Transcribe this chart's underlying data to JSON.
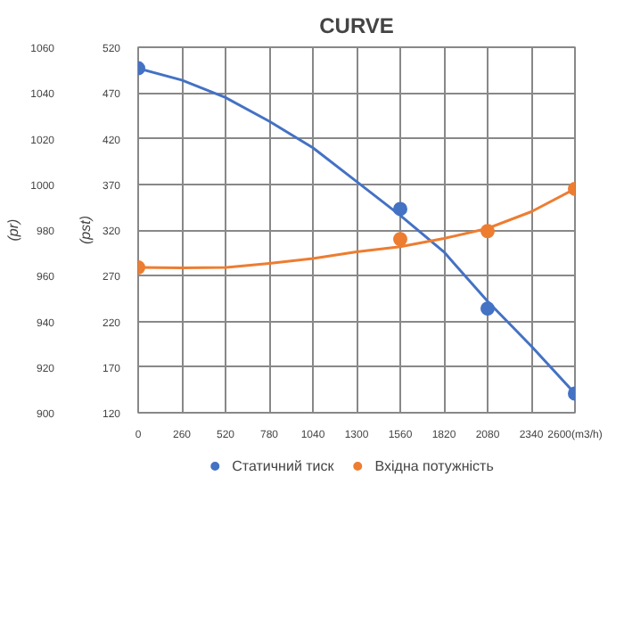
{
  "chart_data": {
    "type": "scatter",
    "title": "CURVE",
    "ylabel": "(pst)",
    "y2label": "(pr)",
    "x": [
      0,
      1560,
      2080,
      2600
    ],
    "series": [
      {
        "name": "Статичний тиск",
        "color": "#4472c4",
        "values": [
          497,
          343,
          234,
          141
        ]
      },
      {
        "name": "Вхідна потужність",
        "color": "#ed7d31",
        "axis": "y2",
        "values": [
          963.6,
          976,
          979.5,
          998
        ]
      },
      {
        "type": "line",
        "marker": "none",
        "color": "#4472c4",
        "x": [
          0,
          260,
          520,
          780,
          1040,
          1300,
          1560,
          1820,
          2080,
          2340,
          2600
        ],
        "values": [
          497,
          484,
          465,
          439,
          410,
          373,
          336,
          296,
          242,
          193,
          141
        ]
      },
      {
        "type": "line",
        "marker": "none",
        "color": "#ed7d31",
        "axis": "y2",
        "x": [
          0,
          260,
          520,
          780,
          1040,
          1300,
          1560,
          1820,
          2080,
          2340,
          2600
        ],
        "values": [
          963.6,
          963.4,
          963.6,
          965.4,
          967.5,
          970.4,
          972.7,
          976.3,
          980.7,
          988,
          998
        ]
      }
    ],
    "xlim": [
      0,
      2600
    ],
    "xticks": [
      0,
      260,
      520,
      780,
      1040,
      1300,
      1560,
      1820,
      2080,
      2340,
      {
        "value": 2600,
        "label": "2600(m3/h)"
      }
    ],
    "ylim": [
      120,
      520
    ],
    "yticks": [
      120,
      170,
      220,
      270,
      320,
      370,
      420,
      470,
      520
    ],
    "y2lim": [
      900,
      1060
    ],
    "y2ticks": [
      900,
      920,
      940,
      960,
      980,
      1000,
      1020,
      1040,
      1060
    ],
    "grid": true,
    "legend": "bottom",
    "marker": "circle"
  }
}
